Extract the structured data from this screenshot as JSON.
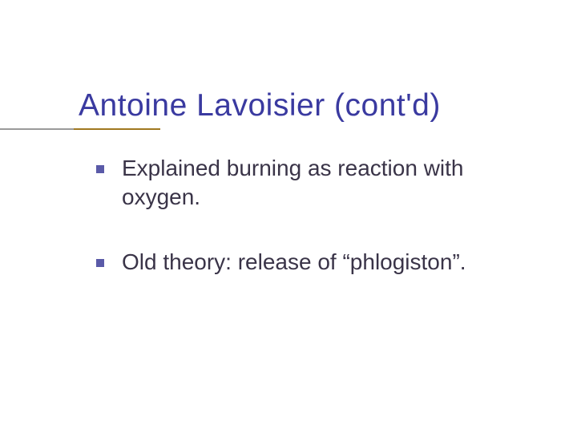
{
  "slide": {
    "title": "Antoine Lavoisier (cont'd)",
    "title_color": "#3a3aa0",
    "title_fontsize": 39,
    "underline": {
      "grey_color": "#9a9a9a",
      "accent_color": "#a07820",
      "grey_start": 0,
      "grey_width": 92,
      "accent_start": 92,
      "accent_width": 108
    },
    "bullets": [
      {
        "text": "Explained burning as reaction with oxygen."
      },
      {
        "text": "Old theory: release of “phlogiston”."
      }
    ],
    "bullet_color": "#5a5aa8",
    "text_color": "#3a3448",
    "bullet_fontsize": 28,
    "background_color": "#ffffff"
  }
}
